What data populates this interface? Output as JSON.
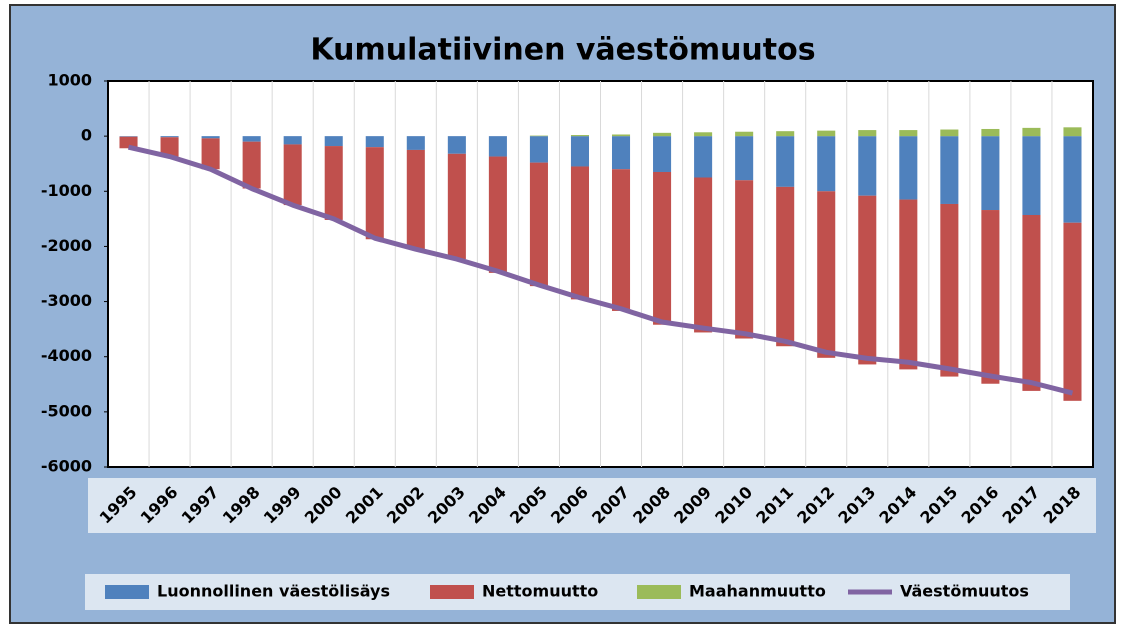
{
  "chart_data": {
    "type": "stacked-bar-line",
    "title": "Kumulatiivinen väestömuutos",
    "categories": [
      "1995",
      "1996",
      "1997",
      "1998",
      "1999",
      "2000",
      "2001",
      "2002",
      "2003",
      "2004",
      "2005",
      "2006",
      "2007",
      "2008",
      "2009",
      "2010",
      "2011",
      "2012",
      "2013",
      "2014",
      "2015",
      "2016",
      "2017",
      "2018"
    ],
    "series": [
      {
        "name": "Luonnollinen väestölisäys",
        "color": "#4f81bd",
        "kind": "bar",
        "values": [
          -10,
          -20,
          -40,
          -100,
          -150,
          -180,
          -200,
          -250,
          -320,
          -370,
          -480,
          -550,
          -600,
          -650,
          -750,
          -800,
          -920,
          -1000,
          -1080,
          -1150,
          -1230,
          -1340,
          -1430,
          -1570
        ]
      },
      {
        "name": "Nettomuutto",
        "color": "#c0504d",
        "kind": "bar",
        "values": [
          -210,
          -350,
          -560,
          -850,
          -1100,
          -1340,
          -1670,
          -1800,
          -1910,
          -2110,
          -2240,
          -2410,
          -2570,
          -2770,
          -2810,
          -2870,
          -2890,
          -3020,
          -3060,
          -3080,
          -3130,
          -3150,
          -3190,
          -3230
        ]
      },
      {
        "name": "Maahanmuutto",
        "color": "#9bbb59",
        "kind": "bar",
        "values": [
          0,
          0,
          0,
          0,
          0,
          0,
          0,
          0,
          0,
          0,
          10,
          20,
          30,
          60,
          70,
          80,
          90,
          100,
          110,
          110,
          120,
          130,
          150,
          160
        ]
      },
      {
        "name": "Väestömuutos",
        "color": "#8064a2",
        "kind": "line",
        "values": [
          -200,
          -370,
          -600,
          -950,
          -1250,
          -1500,
          -1850,
          -2050,
          -2230,
          -2450,
          -2700,
          -2930,
          -3130,
          -3370,
          -3480,
          -3580,
          -3720,
          -3920,
          -4030,
          -4100,
          -4220,
          -4350,
          -4470,
          -4660
        ]
      }
    ],
    "ylim": [
      -6000,
      1000
    ],
    "yticks": [
      1000,
      0,
      -1000,
      -2000,
      -3000,
      -4000,
      -5000,
      -6000
    ],
    "grid": true,
    "legend": "bottom"
  }
}
